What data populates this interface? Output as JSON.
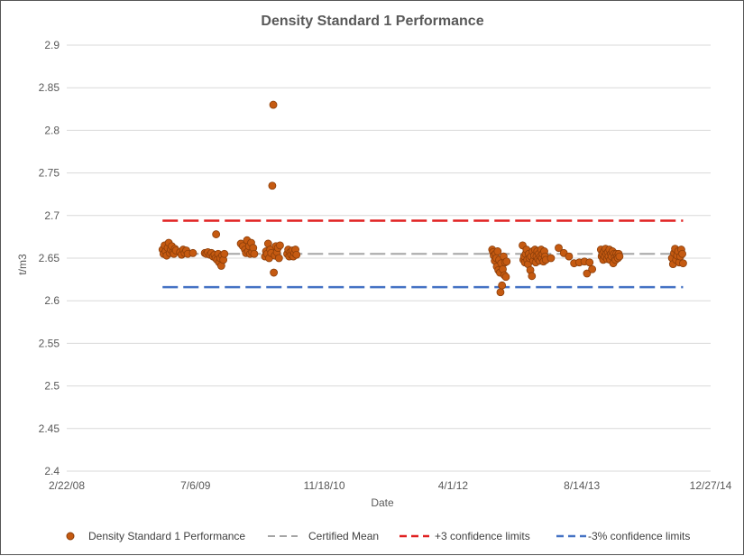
{
  "chart_data": {
    "type": "scatter",
    "title": "Density Standard 1 Performance",
    "xlabel": "Date",
    "ylabel": "t/m3",
    "ylim": [
      2.4,
      2.9
    ],
    "yticks": [
      "2.4",
      "2.45",
      "2.5",
      "2.55",
      "2.6",
      "2.65",
      "2.7",
      "2.75",
      "2.8",
      "2.85",
      "2.9"
    ],
    "xlim_days": [
      0,
      2500
    ],
    "xticks": [
      {
        "label": "2/22/08",
        "day": 0
      },
      {
        "label": "7/6/09",
        "day": 500
      },
      {
        "label": "11/18/10",
        "day": 1000
      },
      {
        "label": "4/1/12",
        "day": 1500
      },
      {
        "label": "8/14/13",
        "day": 2000
      },
      {
        "label": "12/27/14",
        "day": 2500
      }
    ],
    "lines": [
      {
        "name": "Certified Mean",
        "value": 2.655,
        "x_start_day": 372,
        "x_end_day": 2393,
        "color": "#a5a5a5"
      },
      {
        "name": "+3 confidence limits",
        "value": 2.694,
        "x_start_day": 372,
        "x_end_day": 2393,
        "color": "#e02020"
      },
      {
        "name": "-3% confidence limits",
        "value": 2.616,
        "x_start_day": 372,
        "x_end_day": 2393,
        "color": "#4472c4"
      }
    ],
    "series": [
      {
        "name": "Density Standard 1 Performance",
        "color": "#c55a11",
        "points": [
          [
            372,
            2.66
          ],
          [
            376,
            2.655
          ],
          [
            380,
            2.665
          ],
          [
            384,
            2.658
          ],
          [
            388,
            2.653
          ],
          [
            392,
            2.662
          ],
          [
            396,
            2.668
          ],
          [
            400,
            2.656
          ],
          [
            404,
            2.66
          ],
          [
            408,
            2.664
          ],
          [
            412,
            2.657
          ],
          [
            416,
            2.655
          ],
          [
            420,
            2.661
          ],
          [
            424,
            2.659
          ],
          [
            440,
            2.657
          ],
          [
            446,
            2.654
          ],
          [
            452,
            2.66
          ],
          [
            458,
            2.656
          ],
          [
            464,
            2.659
          ],
          [
            470,
            2.655
          ],
          [
            490,
            2.656
          ],
          [
            536,
            2.656
          ],
          [
            542,
            2.655
          ],
          [
            548,
            2.657
          ],
          [
            556,
            2.654
          ],
          [
            562,
            2.656
          ],
          [
            568,
            2.652
          ],
          [
            574,
            2.654
          ],
          [
            578,
            2.65
          ],
          [
            580,
            2.678
          ],
          [
            584,
            2.648
          ],
          [
            588,
            2.655
          ],
          [
            592,
            2.645
          ],
          [
            596,
            2.65
          ],
          [
            600,
            2.641
          ],
          [
            604,
            2.653
          ],
          [
            608,
            2.648
          ],
          [
            612,
            2.655
          ],
          [
            676,
            2.667
          ],
          [
            684,
            2.664
          ],
          [
            692,
            2.66
          ],
          [
            696,
            2.656
          ],
          [
            700,
            2.671
          ],
          [
            704,
            2.658
          ],
          [
            708,
            2.664
          ],
          [
            712,
            2.655
          ],
          [
            716,
            2.668
          ],
          [
            720,
            2.657
          ],
          [
            724,
            2.662
          ],
          [
            728,
            2.655
          ],
          [
            770,
            2.652
          ],
          [
            774,
            2.658
          ],
          [
            778,
            2.655
          ],
          [
            782,
            2.667
          ],
          [
            786,
            2.65
          ],
          [
            790,
            2.66
          ],
          [
            794,
            2.656
          ],
          [
            798,
            2.735
          ],
          [
            802,
            2.83
          ],
          [
            804,
            2.633
          ],
          [
            808,
            2.653
          ],
          [
            812,
            2.664
          ],
          [
            816,
            2.657
          ],
          [
            820,
            2.662
          ],
          [
            824,
            2.65
          ],
          [
            828,
            2.665
          ],
          [
            856,
            2.655
          ],
          [
            860,
            2.66
          ],
          [
            864,
            2.652
          ],
          [
            868,
            2.657
          ],
          [
            872,
            2.654
          ],
          [
            876,
            2.659
          ],
          [
            880,
            2.652
          ],
          [
            884,
            2.656
          ],
          [
            888,
            2.66
          ],
          [
            892,
            2.654
          ],
          [
            1652,
            2.66
          ],
          [
            1655,
            2.657
          ],
          [
            1658,
            2.653
          ],
          [
            1662,
            2.647
          ],
          [
            1665,
            2.655
          ],
          [
            1668,
            2.65
          ],
          [
            1670,
            2.64
          ],
          [
            1673,
            2.658
          ],
          [
            1676,
            2.636
          ],
          [
            1679,
            2.648
          ],
          [
            1682,
            2.633
          ],
          [
            1684,
            2.61
          ],
          [
            1687,
            2.644
          ],
          [
            1690,
            2.618
          ],
          [
            1693,
            2.637
          ],
          [
            1696,
            2.652
          ],
          [
            1699,
            2.63
          ],
          [
            1702,
            2.645
          ],
          [
            1705,
            2.628
          ],
          [
            1708,
            2.646
          ],
          [
            1770,
            2.665
          ],
          [
            1773,
            2.648
          ],
          [
            1776,
            2.652
          ],
          [
            1779,
            2.645
          ],
          [
            1782,
            2.655
          ],
          [
            1785,
            2.66
          ],
          [
            1788,
            2.648
          ],
          [
            1791,
            2.643
          ],
          [
            1794,
            2.655
          ],
          [
            1797,
            2.65
          ],
          [
            1800,
            2.636
          ],
          [
            1803,
            2.652
          ],
          [
            1806,
            2.629
          ],
          [
            1809,
            2.658
          ],
          [
            1812,
            2.647
          ],
          [
            1815,
            2.653
          ],
          [
            1818,
            2.66
          ],
          [
            1821,
            2.645
          ],
          [
            1824,
            2.652
          ],
          [
            1827,
            2.658
          ],
          [
            1830,
            2.649
          ],
          [
            1833,
            2.655
          ],
          [
            1836,
            2.647
          ],
          [
            1839,
            2.652
          ],
          [
            1842,
            2.66
          ],
          [
            1845,
            2.65
          ],
          [
            1848,
            2.655
          ],
          [
            1851,
            2.646
          ],
          [
            1854,
            2.658
          ],
          [
            1857,
            2.652
          ],
          [
            1860,
            2.648
          ],
          [
            1880,
            2.65
          ],
          [
            1910,
            2.662
          ],
          [
            1930,
            2.656
          ],
          [
            1950,
            2.652
          ],
          [
            1970,
            2.644
          ],
          [
            1990,
            2.645
          ],
          [
            2010,
            2.646
          ],
          [
            2020,
            2.632
          ],
          [
            2030,
            2.645
          ],
          [
            2040,
            2.637
          ],
          [
            2074,
            2.66
          ],
          [
            2077,
            2.652
          ],
          [
            2080,
            2.655
          ],
          [
            2083,
            2.648
          ],
          [
            2086,
            2.658
          ],
          [
            2089,
            2.652
          ],
          [
            2092,
            2.661
          ],
          [
            2095,
            2.655
          ],
          [
            2098,
            2.649
          ],
          [
            2101,
            2.657
          ],
          [
            2104,
            2.652
          ],
          [
            2107,
            2.66
          ],
          [
            2110,
            2.648
          ],
          [
            2113,
            2.655
          ],
          [
            2116,
            2.652
          ],
          [
            2119,
            2.658
          ],
          [
            2122,
            2.644
          ],
          [
            2125,
            2.655
          ],
          [
            2128,
            2.651
          ],
          [
            2131,
            2.648
          ],
          [
            2134,
            2.655
          ],
          [
            2137,
            2.652
          ],
          [
            2140,
            2.65
          ],
          [
            2143,
            2.655
          ],
          [
            2146,
            2.652
          ],
          [
            2350,
            2.65
          ],
          [
            2354,
            2.643
          ],
          [
            2358,
            2.656
          ],
          [
            2362,
            2.661
          ],
          [
            2366,
            2.648
          ],
          [
            2370,
            2.653
          ],
          [
            2374,
            2.658
          ],
          [
            2378,
            2.645
          ],
          [
            2382,
            2.652
          ],
          [
            2386,
            2.66
          ],
          [
            2390,
            2.655
          ],
          [
            2393,
            2.644
          ]
        ]
      }
    ],
    "legend_position": "bottom"
  }
}
